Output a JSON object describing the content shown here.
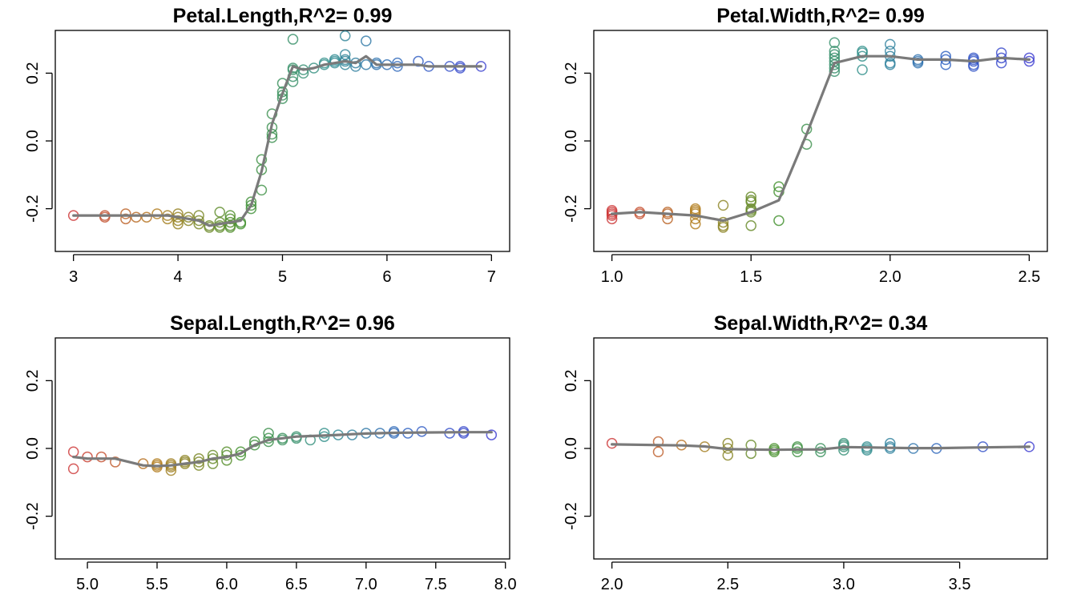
{
  "chart_data": [
    {
      "type": "scatter",
      "title": "Petal.Length,R^2= 0.99",
      "xlabel": "",
      "ylabel": "",
      "xlim": [
        3,
        7
      ],
      "ylim": [
        -0.3,
        0.3
      ],
      "x_ticks": [
        3,
        4,
        5,
        6,
        7
      ],
      "x_tick_labels": [
        "3",
        "4",
        "5",
        "6",
        "7"
      ],
      "y_ticks": [
        -0.2,
        0.0,
        0.2
      ],
      "y_tick_labels": [
        "-0.2",
        "0.0",
        "0.2"
      ],
      "grid": false,
      "line": {
        "x": [
          3.0,
          3.3,
          3.5,
          3.6,
          3.7,
          3.8,
          3.9,
          4.0,
          4.1,
          4.2,
          4.3,
          4.4,
          4.5,
          4.6,
          4.7,
          4.8,
          4.9,
          5.0,
          5.1,
          5.2,
          5.3,
          5.4,
          5.5,
          5.6,
          5.7,
          5.8,
          5.9,
          6.0,
          6.1,
          6.3,
          6.4,
          6.6,
          6.7,
          6.9
        ],
        "y": [
          -0.22,
          -0.22,
          -0.22,
          -0.22,
          -0.22,
          -0.22,
          -0.22,
          -0.225,
          -0.23,
          -0.235,
          -0.25,
          -0.245,
          -0.24,
          -0.235,
          -0.19,
          -0.09,
          0.05,
          0.14,
          0.22,
          0.21,
          0.215,
          0.225,
          0.23,
          0.235,
          0.23,
          0.25,
          0.225,
          0.225,
          0.225,
          0.225,
          0.22,
          0.22,
          0.22,
          0.22
        ]
      },
      "points": [
        {
          "x": 3.0,
          "y": -0.22
        },
        {
          "x": 3.3,
          "y": -0.22
        },
        {
          "x": 3.3,
          "y": -0.225
        },
        {
          "x": 3.5,
          "y": -0.215
        },
        {
          "x": 3.5,
          "y": -0.23
        },
        {
          "x": 3.6,
          "y": -0.225
        },
        {
          "x": 3.7,
          "y": -0.225
        },
        {
          "x": 3.8,
          "y": -0.215
        },
        {
          "x": 3.9,
          "y": -0.22
        },
        {
          "x": 3.9,
          "y": -0.23
        },
        {
          "x": 4.0,
          "y": -0.215
        },
        {
          "x": 4.0,
          "y": -0.225
        },
        {
          "x": 4.0,
          "y": -0.235
        },
        {
          "x": 4.0,
          "y": -0.245
        },
        {
          "x": 4.1,
          "y": -0.225
        },
        {
          "x": 4.1,
          "y": -0.235
        },
        {
          "x": 4.2,
          "y": -0.22
        },
        {
          "x": 4.2,
          "y": -0.235
        },
        {
          "x": 4.2,
          "y": -0.245
        },
        {
          "x": 4.3,
          "y": -0.25
        },
        {
          "x": 4.3,
          "y": -0.255
        },
        {
          "x": 4.4,
          "y": -0.21
        },
        {
          "x": 4.4,
          "y": -0.24
        },
        {
          "x": 4.4,
          "y": -0.25
        },
        {
          "x": 4.4,
          "y": -0.255
        },
        {
          "x": 4.5,
          "y": -0.22
        },
        {
          "x": 4.5,
          "y": -0.23
        },
        {
          "x": 4.5,
          "y": -0.24
        },
        {
          "x": 4.5,
          "y": -0.25
        },
        {
          "x": 4.5,
          "y": -0.255
        },
        {
          "x": 4.6,
          "y": -0.24
        },
        {
          "x": 4.6,
          "y": -0.245
        },
        {
          "x": 4.7,
          "y": -0.18
        },
        {
          "x": 4.7,
          "y": -0.19
        },
        {
          "x": 4.7,
          "y": -0.2
        },
        {
          "x": 4.8,
          "y": -0.055
        },
        {
          "x": 4.8,
          "y": -0.085
        },
        {
          "x": 4.8,
          "y": -0.145
        },
        {
          "x": 4.9,
          "y": 0.08
        },
        {
          "x": 4.9,
          "y": 0.04
        },
        {
          "x": 4.9,
          "y": 0.02
        },
        {
          "x": 4.9,
          "y": 0.01
        },
        {
          "x": 5.0,
          "y": 0.17
        },
        {
          "x": 5.0,
          "y": 0.145
        },
        {
          "x": 5.0,
          "y": 0.135
        },
        {
          "x": 5.0,
          "y": 0.125
        },
        {
          "x": 5.1,
          "y": 0.3
        },
        {
          "x": 5.1,
          "y": 0.215
        },
        {
          "x": 5.1,
          "y": 0.21
        },
        {
          "x": 5.1,
          "y": 0.19
        },
        {
          "x": 5.1,
          "y": 0.175
        },
        {
          "x": 5.2,
          "y": 0.2
        },
        {
          "x": 5.2,
          "y": 0.21
        },
        {
          "x": 5.3,
          "y": 0.215
        },
        {
          "x": 5.4,
          "y": 0.225
        },
        {
          "x": 5.4,
          "y": 0.23
        },
        {
          "x": 5.5,
          "y": 0.24
        },
        {
          "x": 5.5,
          "y": 0.235
        },
        {
          "x": 5.5,
          "y": 0.23
        },
        {
          "x": 5.6,
          "y": 0.31
        },
        {
          "x": 5.6,
          "y": 0.255
        },
        {
          "x": 5.6,
          "y": 0.24
        },
        {
          "x": 5.6,
          "y": 0.235
        },
        {
          "x": 5.6,
          "y": 0.225
        },
        {
          "x": 5.7,
          "y": 0.23
        },
        {
          "x": 5.7,
          "y": 0.22
        },
        {
          "x": 5.8,
          "y": 0.295
        },
        {
          "x": 5.8,
          "y": 0.225
        },
        {
          "x": 5.9,
          "y": 0.23
        },
        {
          "x": 5.9,
          "y": 0.225
        },
        {
          "x": 6.0,
          "y": 0.225
        },
        {
          "x": 6.1,
          "y": 0.23
        },
        {
          "x": 6.1,
          "y": 0.22
        },
        {
          "x": 6.3,
          "y": 0.235
        },
        {
          "x": 6.4,
          "y": 0.22
        },
        {
          "x": 6.6,
          "y": 0.22
        },
        {
          "x": 6.7,
          "y": 0.22
        },
        {
          "x": 6.7,
          "y": 0.215
        },
        {
          "x": 6.9,
          "y": 0.22
        }
      ]
    },
    {
      "type": "scatter",
      "title": "Petal.Width,R^2= 0.99",
      "xlabel": "",
      "ylabel": "",
      "xlim": [
        1.0,
        2.5
      ],
      "ylim": [
        -0.3,
        0.3
      ],
      "x_ticks": [
        1.0,
        1.5,
        2.0,
        2.5
      ],
      "x_tick_labels": [
        "1.0",
        "1.5",
        "2.0",
        "2.5"
      ],
      "y_ticks": [
        -0.2,
        0.0,
        0.2
      ],
      "y_tick_labels": [
        "-0.2",
        "0.0",
        "0.2"
      ],
      "grid": false,
      "line": {
        "x": [
          1.0,
          1.1,
          1.2,
          1.3,
          1.4,
          1.5,
          1.6,
          1.7,
          1.8,
          1.9,
          2.0,
          2.1,
          2.2,
          2.3,
          2.4,
          2.5
        ],
        "y": [
          -0.215,
          -0.21,
          -0.215,
          -0.22,
          -0.235,
          -0.21,
          -0.175,
          0.02,
          0.23,
          0.25,
          0.25,
          0.24,
          0.24,
          0.235,
          0.245,
          0.24
        ]
      },
      "points": [
        {
          "x": 1.0,
          "y": -0.205
        },
        {
          "x": 1.0,
          "y": -0.21
        },
        {
          "x": 1.0,
          "y": -0.215
        },
        {
          "x": 1.0,
          "y": -0.22
        },
        {
          "x": 1.0,
          "y": -0.23
        },
        {
          "x": 1.1,
          "y": -0.21
        },
        {
          "x": 1.1,
          "y": -0.215
        },
        {
          "x": 1.2,
          "y": -0.21
        },
        {
          "x": 1.2,
          "y": -0.215
        },
        {
          "x": 1.2,
          "y": -0.23
        },
        {
          "x": 1.3,
          "y": -0.2
        },
        {
          "x": 1.3,
          "y": -0.205
        },
        {
          "x": 1.3,
          "y": -0.21
        },
        {
          "x": 1.3,
          "y": -0.215
        },
        {
          "x": 1.3,
          "y": -0.23
        },
        {
          "x": 1.3,
          "y": -0.245
        },
        {
          "x": 1.4,
          "y": -0.19
        },
        {
          "x": 1.4,
          "y": -0.24
        },
        {
          "x": 1.4,
          "y": -0.25
        },
        {
          "x": 1.4,
          "y": -0.255
        },
        {
          "x": 1.5,
          "y": -0.165
        },
        {
          "x": 1.5,
          "y": -0.175
        },
        {
          "x": 1.5,
          "y": -0.18
        },
        {
          "x": 1.5,
          "y": -0.2
        },
        {
          "x": 1.5,
          "y": -0.205
        },
        {
          "x": 1.5,
          "y": -0.21
        },
        {
          "x": 1.5,
          "y": -0.25
        },
        {
          "x": 1.6,
          "y": -0.135
        },
        {
          "x": 1.6,
          "y": -0.15
        },
        {
          "x": 1.6,
          "y": -0.235
        },
        {
          "x": 1.7,
          "y": 0.035
        },
        {
          "x": 1.7,
          "y": -0.01
        },
        {
          "x": 1.8,
          "y": 0.29
        },
        {
          "x": 1.8,
          "y": 0.265
        },
        {
          "x": 1.8,
          "y": 0.255
        },
        {
          "x": 1.8,
          "y": 0.245
        },
        {
          "x": 1.8,
          "y": 0.235
        },
        {
          "x": 1.8,
          "y": 0.225
        },
        {
          "x": 1.8,
          "y": 0.215
        },
        {
          "x": 1.8,
          "y": 0.205
        },
        {
          "x": 1.9,
          "y": 0.265
        },
        {
          "x": 1.9,
          "y": 0.26
        },
        {
          "x": 1.9,
          "y": 0.25
        },
        {
          "x": 1.9,
          "y": 0.21
        },
        {
          "x": 2.0,
          "y": 0.285
        },
        {
          "x": 2.0,
          "y": 0.265
        },
        {
          "x": 2.0,
          "y": 0.25
        },
        {
          "x": 2.0,
          "y": 0.23
        },
        {
          "x": 2.0,
          "y": 0.225
        },
        {
          "x": 2.1,
          "y": 0.24
        },
        {
          "x": 2.1,
          "y": 0.235
        },
        {
          "x": 2.1,
          "y": 0.23
        },
        {
          "x": 2.2,
          "y": 0.25
        },
        {
          "x": 2.2,
          "y": 0.24
        },
        {
          "x": 2.2,
          "y": 0.225
        },
        {
          "x": 2.3,
          "y": 0.245
        },
        {
          "x": 2.3,
          "y": 0.24
        },
        {
          "x": 2.3,
          "y": 0.235
        },
        {
          "x": 2.3,
          "y": 0.225
        },
        {
          "x": 2.3,
          "y": 0.22
        },
        {
          "x": 2.4,
          "y": 0.26
        },
        {
          "x": 2.4,
          "y": 0.245
        },
        {
          "x": 2.4,
          "y": 0.23
        },
        {
          "x": 2.5,
          "y": 0.245
        },
        {
          "x": 2.5,
          "y": 0.235
        }
      ]
    },
    {
      "type": "scatter",
      "title": "Sepal.Length,R^2= 0.96",
      "xlabel": "",
      "ylabel": "",
      "xlim": [
        4.9,
        7.9
      ],
      "ylim": [
        -0.3,
        0.3
      ],
      "x_ticks": [
        5.0,
        5.5,
        6.0,
        6.5,
        7.0,
        7.5,
        8.0
      ],
      "x_tick_labels": [
        "5.0",
        "5.5",
        "6.0",
        "6.5",
        "7.0",
        "7.5",
        "8.0"
      ],
      "y_ticks": [
        -0.2,
        0.0,
        0.2
      ],
      "y_tick_labels": [
        "-0.2",
        "0.0",
        "0.2"
      ],
      "grid": false,
      "line": {
        "x": [
          4.9,
          5.0,
          5.1,
          5.2,
          5.4,
          5.5,
          5.6,
          5.7,
          5.8,
          5.9,
          6.0,
          6.1,
          6.2,
          6.3,
          6.4,
          6.5,
          6.7,
          6.8,
          6.9,
          7.0,
          7.2,
          7.4,
          7.7,
          7.9
        ],
        "y": [
          -0.025,
          -0.03,
          -0.03,
          -0.03,
          -0.05,
          -0.052,
          -0.05,
          -0.045,
          -0.04,
          -0.03,
          -0.025,
          -0.015,
          0.01,
          0.025,
          0.03,
          0.035,
          0.038,
          0.04,
          0.042,
          0.044,
          0.046,
          0.047,
          0.048,
          0.048
        ]
      },
      "points": [
        {
          "x": 4.9,
          "y": -0.01
        },
        {
          "x": 4.9,
          "y": -0.06
        },
        {
          "x": 5.0,
          "y": -0.025
        },
        {
          "x": 5.1,
          "y": -0.025
        },
        {
          "x": 5.2,
          "y": -0.04
        },
        {
          "x": 5.4,
          "y": -0.045
        },
        {
          "x": 5.5,
          "y": -0.045
        },
        {
          "x": 5.5,
          "y": -0.05
        },
        {
          "x": 5.5,
          "y": -0.055
        },
        {
          "x": 5.6,
          "y": -0.045
        },
        {
          "x": 5.6,
          "y": -0.05
        },
        {
          "x": 5.6,
          "y": -0.055
        },
        {
          "x": 5.6,
          "y": -0.065
        },
        {
          "x": 5.7,
          "y": -0.035
        },
        {
          "x": 5.7,
          "y": -0.04
        },
        {
          "x": 5.7,
          "y": -0.045
        },
        {
          "x": 5.8,
          "y": -0.03
        },
        {
          "x": 5.8,
          "y": -0.04
        },
        {
          "x": 5.8,
          "y": -0.05
        },
        {
          "x": 5.9,
          "y": -0.02
        },
        {
          "x": 5.9,
          "y": -0.03
        },
        {
          "x": 5.9,
          "y": -0.045
        },
        {
          "x": 6.0,
          "y": -0.01
        },
        {
          "x": 6.0,
          "y": -0.02
        },
        {
          "x": 6.0,
          "y": -0.035
        },
        {
          "x": 6.1,
          "y": -0.01
        },
        {
          "x": 6.1,
          "y": -0.02
        },
        {
          "x": 6.2,
          "y": 0.02
        },
        {
          "x": 6.2,
          "y": 0.01
        },
        {
          "x": 6.3,
          "y": 0.045
        },
        {
          "x": 6.3,
          "y": 0.03
        },
        {
          "x": 6.3,
          "y": 0.02
        },
        {
          "x": 6.4,
          "y": 0.03
        },
        {
          "x": 6.4,
          "y": 0.025
        },
        {
          "x": 6.5,
          "y": 0.035
        },
        {
          "x": 6.5,
          "y": 0.03
        },
        {
          "x": 6.6,
          "y": 0.025
        },
        {
          "x": 6.7,
          "y": 0.045
        },
        {
          "x": 6.7,
          "y": 0.035
        },
        {
          "x": 6.8,
          "y": 0.04
        },
        {
          "x": 6.9,
          "y": 0.04
        },
        {
          "x": 7.0,
          "y": 0.045
        },
        {
          "x": 7.1,
          "y": 0.045
        },
        {
          "x": 7.2,
          "y": 0.05
        },
        {
          "x": 7.2,
          "y": 0.045
        },
        {
          "x": 7.3,
          "y": 0.045
        },
        {
          "x": 7.4,
          "y": 0.05
        },
        {
          "x": 7.6,
          "y": 0.045
        },
        {
          "x": 7.7,
          "y": 0.05
        },
        {
          "x": 7.7,
          "y": 0.045
        },
        {
          "x": 7.9,
          "y": 0.04
        }
      ]
    },
    {
      "type": "scatter",
      "title": "Sepal.Width,R^2= 0.34",
      "xlabel": "",
      "ylabel": "",
      "xlim": [
        2.0,
        3.8
      ],
      "ylim": [
        -0.3,
        0.3
      ],
      "x_ticks": [
        2.0,
        2.5,
        3.0,
        3.5
      ],
      "x_tick_labels": [
        "2.0",
        "2.5",
        "3.0",
        "3.5"
      ],
      "y_ticks": [
        -0.2,
        0.0,
        0.2
      ],
      "y_tick_labels": [
        "-0.2",
        "0.0",
        "0.2"
      ],
      "grid": false,
      "line": {
        "x": [
          2.0,
          2.2,
          2.3,
          2.4,
          2.5,
          2.6,
          2.7,
          2.8,
          2.9,
          3.0,
          3.1,
          3.2,
          3.3,
          3.4,
          3.6,
          3.8
        ],
        "y": [
          0.012,
          0.01,
          0.009,
          0.006,
          -0.002,
          -0.003,
          -0.004,
          -0.003,
          -0.003,
          0.004,
          0.003,
          0.002,
          0.001,
          0.001,
          0.003,
          0.005
        ]
      },
      "points": [
        {
          "x": 2.0,
          "y": 0.015
        },
        {
          "x": 2.2,
          "y": 0.02
        },
        {
          "x": 2.2,
          "y": -0.01
        },
        {
          "x": 2.3,
          "y": 0.01
        },
        {
          "x": 2.4,
          "y": 0.005
        },
        {
          "x": 2.5,
          "y": 0.015
        },
        {
          "x": 2.5,
          "y": 0.0
        },
        {
          "x": 2.5,
          "y": -0.02
        },
        {
          "x": 2.6,
          "y": 0.01
        },
        {
          "x": 2.6,
          "y": -0.015
        },
        {
          "x": 2.7,
          "y": 0.0
        },
        {
          "x": 2.7,
          "y": -0.005
        },
        {
          "x": 2.7,
          "y": -0.01
        },
        {
          "x": 2.8,
          "y": 0.005
        },
        {
          "x": 2.8,
          "y": 0.0
        },
        {
          "x": 2.8,
          "y": -0.01
        },
        {
          "x": 2.9,
          "y": 0.0
        },
        {
          "x": 2.9,
          "y": -0.01
        },
        {
          "x": 3.0,
          "y": 0.015
        },
        {
          "x": 3.0,
          "y": 0.01
        },
        {
          "x": 3.0,
          "y": 0.005
        },
        {
          "x": 3.0,
          "y": -0.005
        },
        {
          "x": 3.1,
          "y": 0.005
        },
        {
          "x": 3.1,
          "y": 0.0
        },
        {
          "x": 3.1,
          "y": -0.005
        },
        {
          "x": 3.2,
          "y": 0.015
        },
        {
          "x": 3.2,
          "y": 0.005
        },
        {
          "x": 3.2,
          "y": 0.0
        },
        {
          "x": 3.3,
          "y": 0.0
        },
        {
          "x": 3.4,
          "y": 0.0
        },
        {
          "x": 3.6,
          "y": 0.005
        },
        {
          "x": 3.8,
          "y": 0.005
        }
      ]
    }
  ],
  "colors": {
    "fit_line": "#7a7a7a",
    "point_palette": [
      "#cc3333",
      "#b07a1a",
      "#3f8f2a",
      "#2f8f8a",
      "#2a5fc0",
      "#3a3ad0"
    ]
  }
}
